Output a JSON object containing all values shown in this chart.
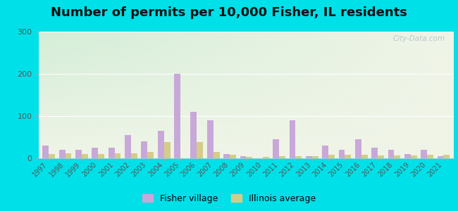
{
  "title": "Number of permits per 10,000 Fisher, IL residents",
  "years": [
    1997,
    1998,
    1999,
    2000,
    2001,
    2002,
    2003,
    2004,
    2005,
    2006,
    2007,
    2008,
    2009,
    2010,
    2011,
    2012,
    2013,
    2014,
    2015,
    2016,
    2017,
    2018,
    2019,
    2020,
    2021
  ],
  "fisher": [
    30,
    20,
    20,
    25,
    25,
    55,
    40,
    65,
    200,
    110,
    90,
    10,
    5,
    0,
    45,
    90,
    5,
    30,
    20,
    45,
    25,
    20,
    10,
    20,
    5
  ],
  "illinois": [
    10,
    12,
    10,
    10,
    12,
    12,
    15,
    38,
    0,
    38,
    15,
    8,
    4,
    4,
    5,
    5,
    5,
    8,
    8,
    8,
    6,
    6,
    6,
    8,
    8
  ],
  "fisher_color": "#c8a8d8",
  "illinois_color": "#d4cc88",
  "outer_bg": "#00e0e8",
  "ylim": [
    0,
    300
  ],
  "yticks": [
    0,
    100,
    200,
    300
  ],
  "title_fontsize": 13,
  "watermark": "City-Data.com",
  "legend_fisher": "Fisher village",
  "legend_illinois": "Illinois average"
}
